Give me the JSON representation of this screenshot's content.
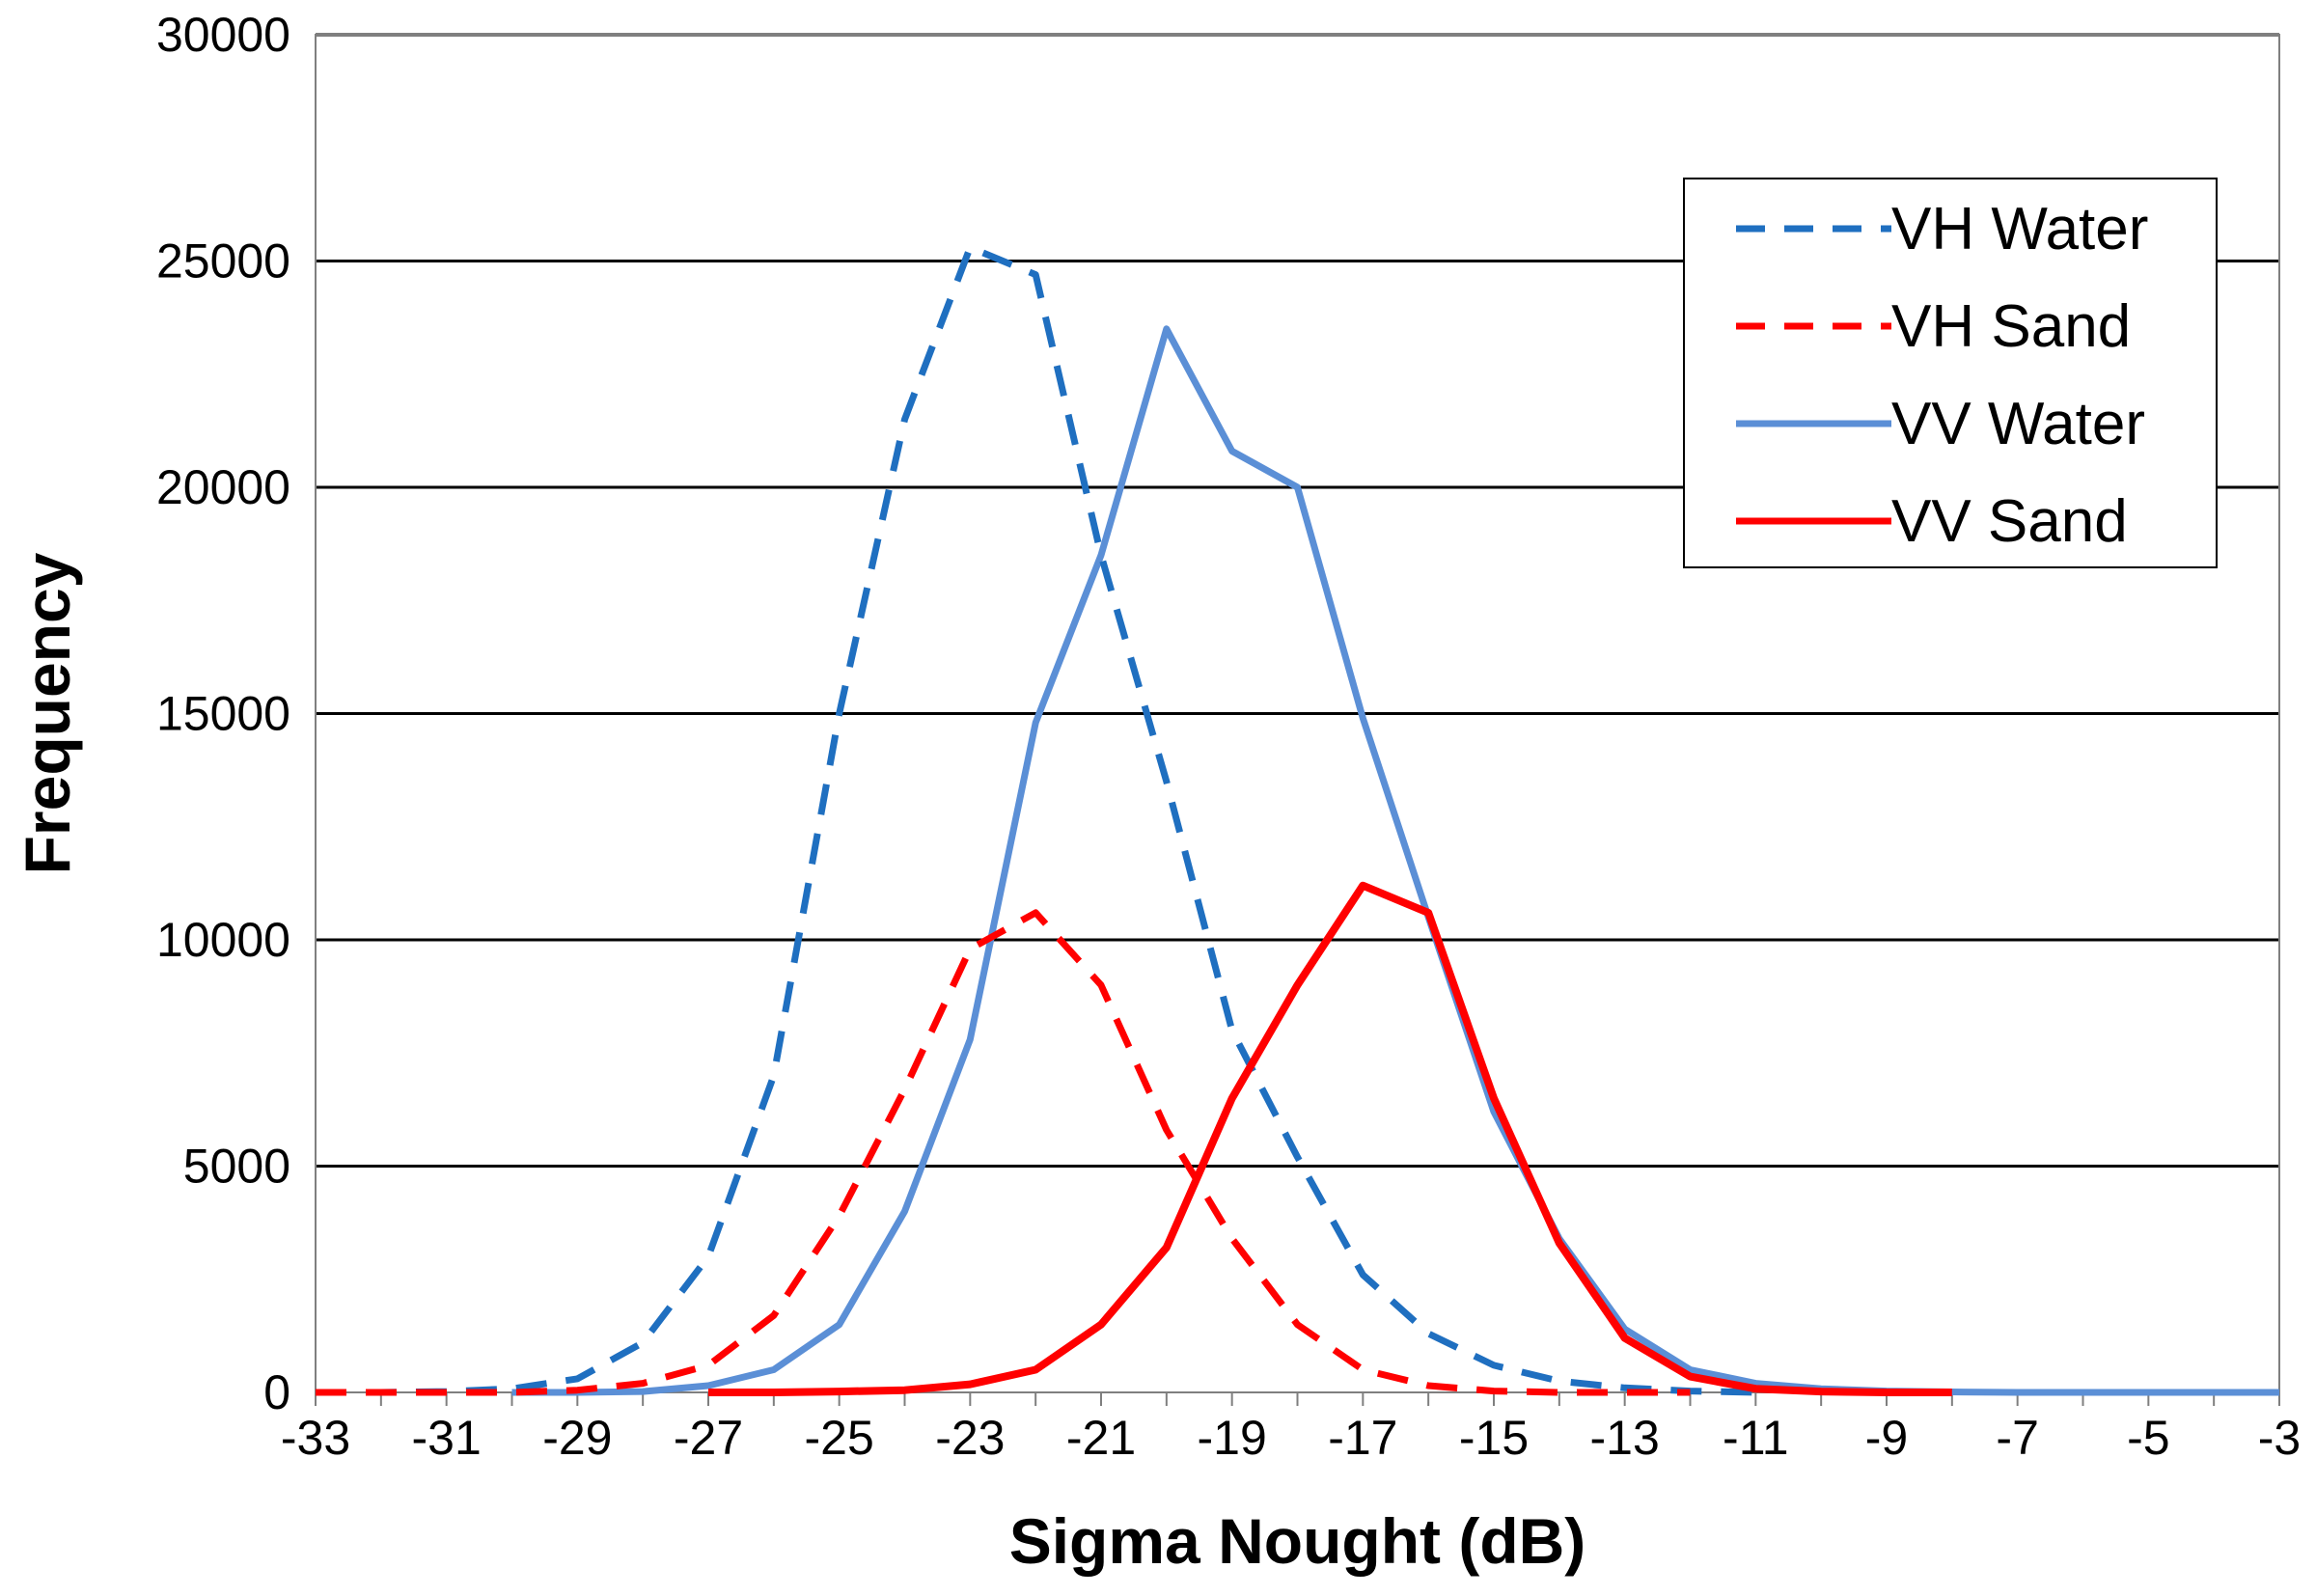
{
  "chart_data": {
    "type": "line",
    "title": "",
    "xlabel": "Sigma Nought (dB)",
    "ylabel": "Frequency",
    "xlim": [
      -33,
      -3
    ],
    "ylim": [
      0,
      30000
    ],
    "grid": true,
    "legend_position": "top-right",
    "x_ticks": [
      "-33",
      "-31",
      "-29",
      "-27",
      "-25",
      "-23",
      "-21",
      "-19",
      "-17",
      "-15",
      "-13",
      "-11",
      "-9",
      "-7",
      "-5",
      "-3"
    ],
    "y_ticks": [
      "0",
      "5000",
      "10000",
      "15000",
      "20000",
      "25000",
      "30000"
    ],
    "series": [
      {
        "name": "VH Water",
        "color": "#1f6fc0",
        "dashed": true,
        "x": [
          -33,
          -32,
          -31,
          -30,
          -29,
          -28,
          -27,
          -26,
          -25,
          -24,
          -23,
          -22,
          -21,
          -20,
          -19,
          -18,
          -17,
          -16,
          -15,
          -14,
          -13,
          -12,
          -11
        ],
        "y": [
          0,
          0,
          20,
          80,
          300,
          1100,
          3000,
          7000,
          15000,
          21500,
          25300,
          24700,
          18500,
          13500,
          8000,
          5200,
          2600,
          1300,
          600,
          250,
          100,
          30,
          0
        ]
      },
      {
        "name": "VH Sand",
        "color": "#ff0000",
        "dashed": true,
        "x": [
          -33,
          -32,
          -31,
          -30,
          -29,
          -28,
          -27,
          -26,
          -25,
          -24,
          -23,
          -22,
          -21,
          -20,
          -19,
          -18,
          -17,
          -16,
          -15,
          -14,
          -13,
          -12
        ],
        "y": [
          0,
          0,
          0,
          0,
          50,
          200,
          600,
          1700,
          3900,
          6700,
          9800,
          10600,
          9000,
          5800,
          3400,
          1500,
          500,
          150,
          30,
          0,
          0,
          0
        ]
      },
      {
        "name": "VV Water",
        "color": "#5b8fd6",
        "dashed": false,
        "x": [
          -30,
          -29,
          -28,
          -27,
          -26,
          -25,
          -24,
          -23,
          -22,
          -21,
          -20,
          -19,
          -18,
          -17,
          -16,
          -15,
          -14,
          -13,
          -12,
          -11,
          -10,
          -9,
          -8,
          -7,
          -6,
          -5,
          -4,
          -3
        ],
        "y": [
          0,
          0,
          20,
          150,
          500,
          1500,
          4000,
          7800,
          14800,
          18500,
          23500,
          20800,
          20000,
          14900,
          10500,
          6200,
          3400,
          1400,
          500,
          200,
          80,
          30,
          10,
          0,
          0,
          0,
          0,
          0
        ]
      },
      {
        "name": "VV Sand",
        "color": "#ff0000",
        "dashed": false,
        "x": [
          -27,
          -26,
          -25,
          -24,
          -23,
          -22,
          -21,
          -20,
          -19,
          -18,
          -17,
          -16,
          -15,
          -14,
          -13,
          -12,
          -11,
          -10,
          -9,
          -8
        ],
        "y": [
          0,
          0,
          20,
          50,
          180,
          500,
          1500,
          3200,
          6500,
          9000,
          11200,
          10600,
          6500,
          3300,
          1200,
          350,
          80,
          20,
          0,
          0
        ]
      }
    ]
  }
}
